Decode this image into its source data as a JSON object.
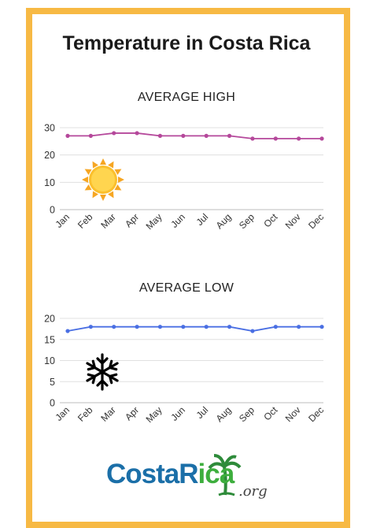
{
  "title": "Temperature in Costa Rica",
  "colors": {
    "border": "#F7B944",
    "high_line": "#B5489B",
    "low_line": "#4A6FE3",
    "logo_blue": "#1B6FA8",
    "logo_green": "#3DAE3D"
  },
  "icons": {
    "high": "sun-icon",
    "low": "snowflake-icon",
    "logo": "palm-tree-icon"
  },
  "logo": {
    "part1": "CostaR",
    "part2": "ica",
    "suffix": ".org"
  },
  "chart_data": [
    {
      "type": "line",
      "title": "AVERAGE HIGH",
      "categories": [
        "Jan",
        "Feb",
        "Mar",
        "Apr",
        "May",
        "Jun",
        "Jul",
        "Aug",
        "Sep",
        "Oct",
        "Nov",
        "Dec"
      ],
      "values": [
        27,
        27,
        28,
        28,
        27,
        27,
        27,
        27,
        26,
        26,
        26,
        26
      ],
      "ylim": [
        0,
        30
      ],
      "yticks": [
        0,
        10,
        20,
        30
      ],
      "grid": true
    },
    {
      "type": "line",
      "title": "AVERAGE LOW",
      "categories": [
        "Jan",
        "Feb",
        "Mar",
        "Apr",
        "May",
        "Jun",
        "Jul",
        "Aug",
        "Sep",
        "Oct",
        "Nov",
        "Dec"
      ],
      "values": [
        17,
        18,
        18,
        18,
        18,
        18,
        18,
        18,
        17,
        18,
        18,
        18
      ],
      "ylim": [
        0,
        20
      ],
      "yticks": [
        0,
        5,
        10,
        15,
        20
      ],
      "grid": true
    }
  ]
}
